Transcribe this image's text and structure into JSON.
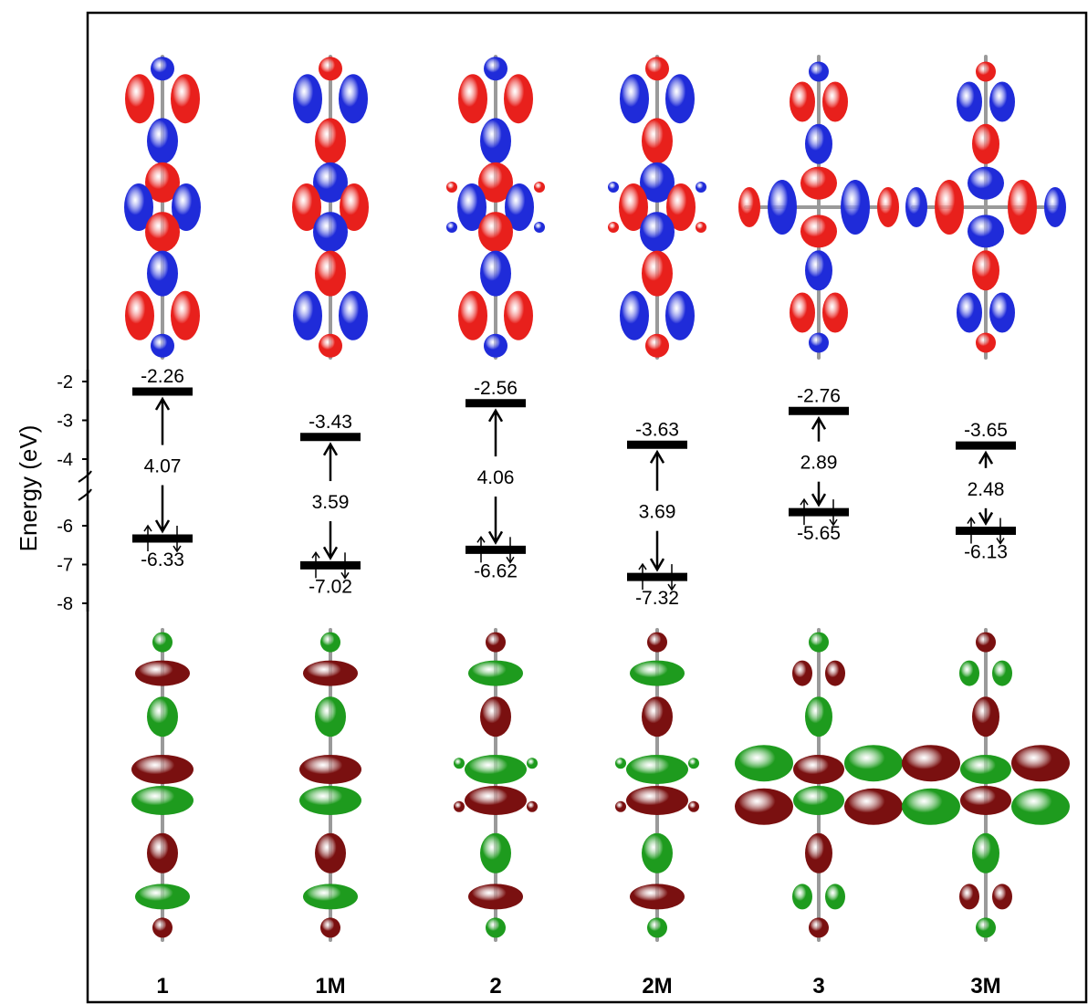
{
  "axis": {
    "ylabel": "Energy  (eV)",
    "upper_ticks": [
      "-2",
      "-3",
      "-4"
    ],
    "lower_ticks": [
      "-6",
      "-7",
      "-8"
    ]
  },
  "colors": {
    "lumo_pos": "#e8201c",
    "lumo_neg": "#1f2bd9",
    "homo_pos": "#7a1010",
    "homo_neg": "#1e9b1e",
    "level": "#000000"
  },
  "molecules": [
    {
      "name": "1",
      "lumo": "-2.26",
      "homo": "-6.33",
      "gap": "4.07",
      "type": "linear",
      "lumo_sign": 1,
      "homo_sign": 1
    },
    {
      "name": "1M",
      "lumo": "-3.43",
      "homo": "-7.02",
      "gap": "3.59",
      "type": "linear",
      "lumo_sign": -1,
      "homo_sign": 1
    },
    {
      "name": "2",
      "lumo": "-2.56",
      "homo": "-6.62",
      "gap": "4.06",
      "type": "substituted",
      "lumo_sign": 1,
      "homo_sign": -1
    },
    {
      "name": "2M",
      "lumo": "-3.63",
      "homo": "-7.32",
      "gap": "3.69",
      "type": "substituted",
      "lumo_sign": -1,
      "homo_sign": -1
    },
    {
      "name": "3",
      "lumo": "-2.76",
      "homo": "-5.65",
      "gap": "2.89",
      "type": "cross",
      "lumo_sign": 1,
      "homo_sign": -1
    },
    {
      "name": "3M",
      "lumo": "-3.65",
      "homo": "-6.13",
      "gap": "2.48",
      "type": "cross",
      "lumo_sign": -1,
      "homo_sign": 1
    }
  ]
}
